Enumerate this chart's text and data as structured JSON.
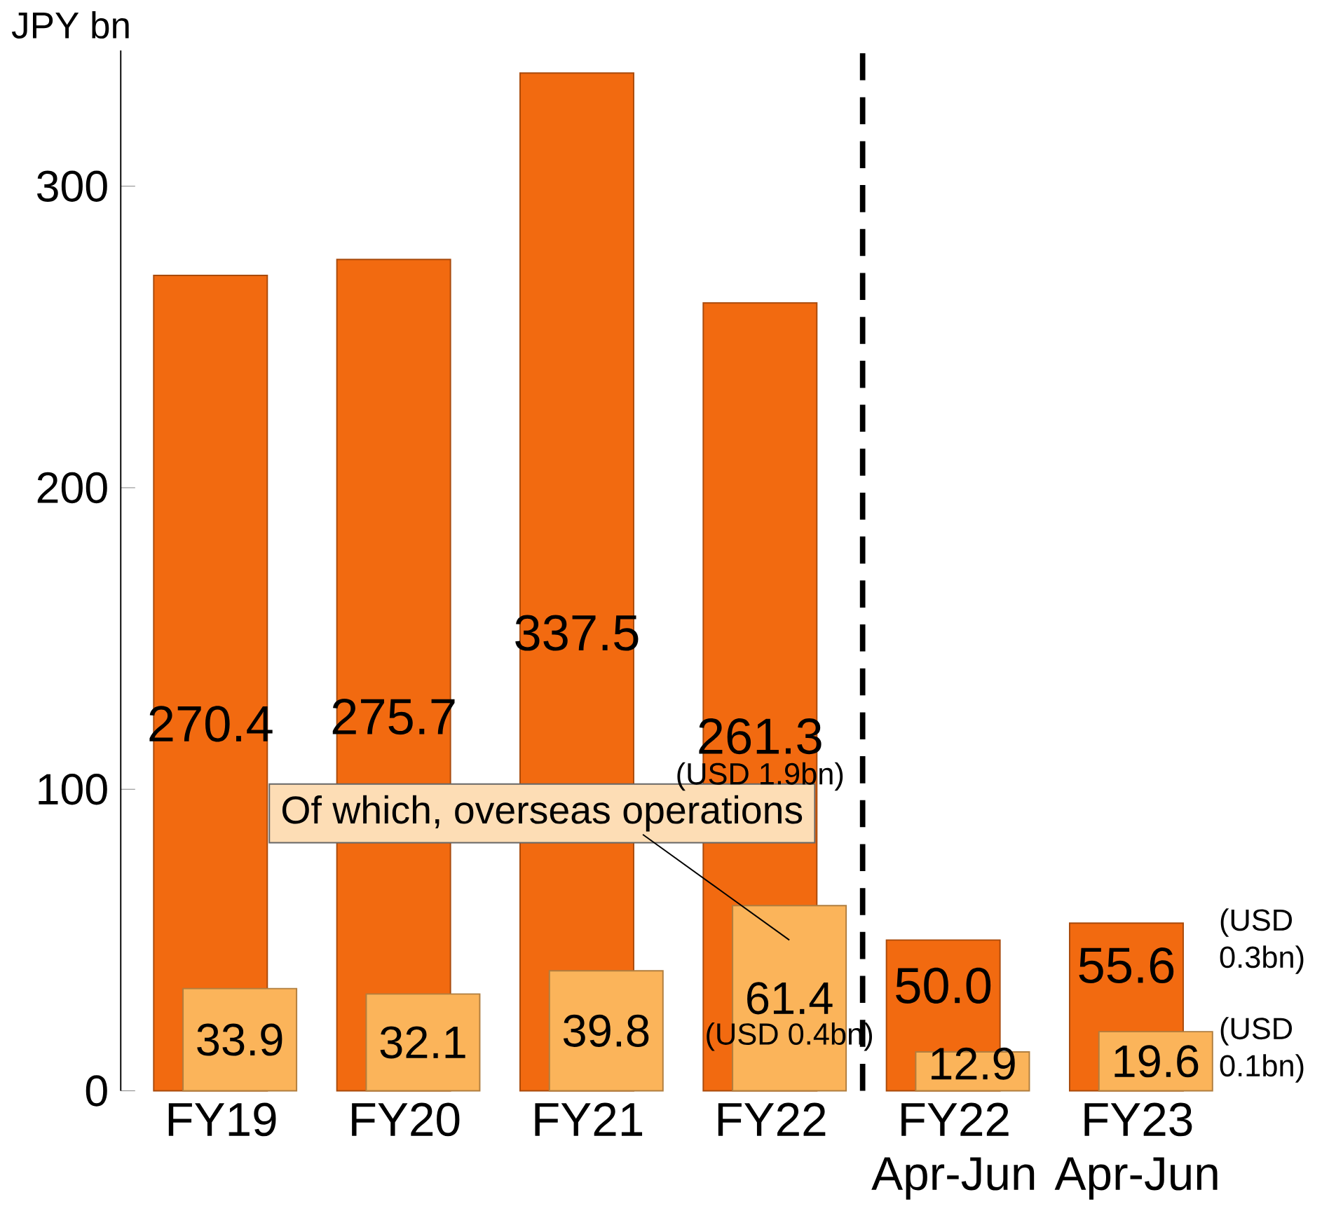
{
  "chart_data": {
    "type": "bar",
    "ylabel": "JPY bn",
    "categories": [
      "FY19",
      "FY20",
      "FY21",
      "FY22",
      "FY22 Apr-Jun",
      "FY23 Apr-Jun"
    ],
    "series": [
      {
        "color": "#f26a10",
        "values": [
          270.4,
          275.7,
          337.5,
          261.3,
          50.0,
          55.6
        ],
        "value_labels": [
          "270.4",
          "275.7",
          "337.5",
          "261.3",
          "50.0",
          "55.6"
        ]
      },
      {
        "color": "#fbb45a",
        "values": [
          33.9,
          32.1,
          39.8,
          61.4,
          12.9,
          19.6
        ],
        "value_labels": [
          "33.9",
          "32.1",
          "39.8",
          "61.4",
          "12.9",
          "19.6"
        ]
      }
    ],
    "ylim": [
      0,
      345
    ],
    "yticks": [
      0,
      100,
      200,
      300
    ],
    "grid": false,
    "annotations": [
      "Of which, overseas operations",
      "(USD 1.9bn)",
      "(USD 0.4bn)",
      "(USD 0.3bn)",
      "(USD 0.1bn)"
    ]
  }
}
